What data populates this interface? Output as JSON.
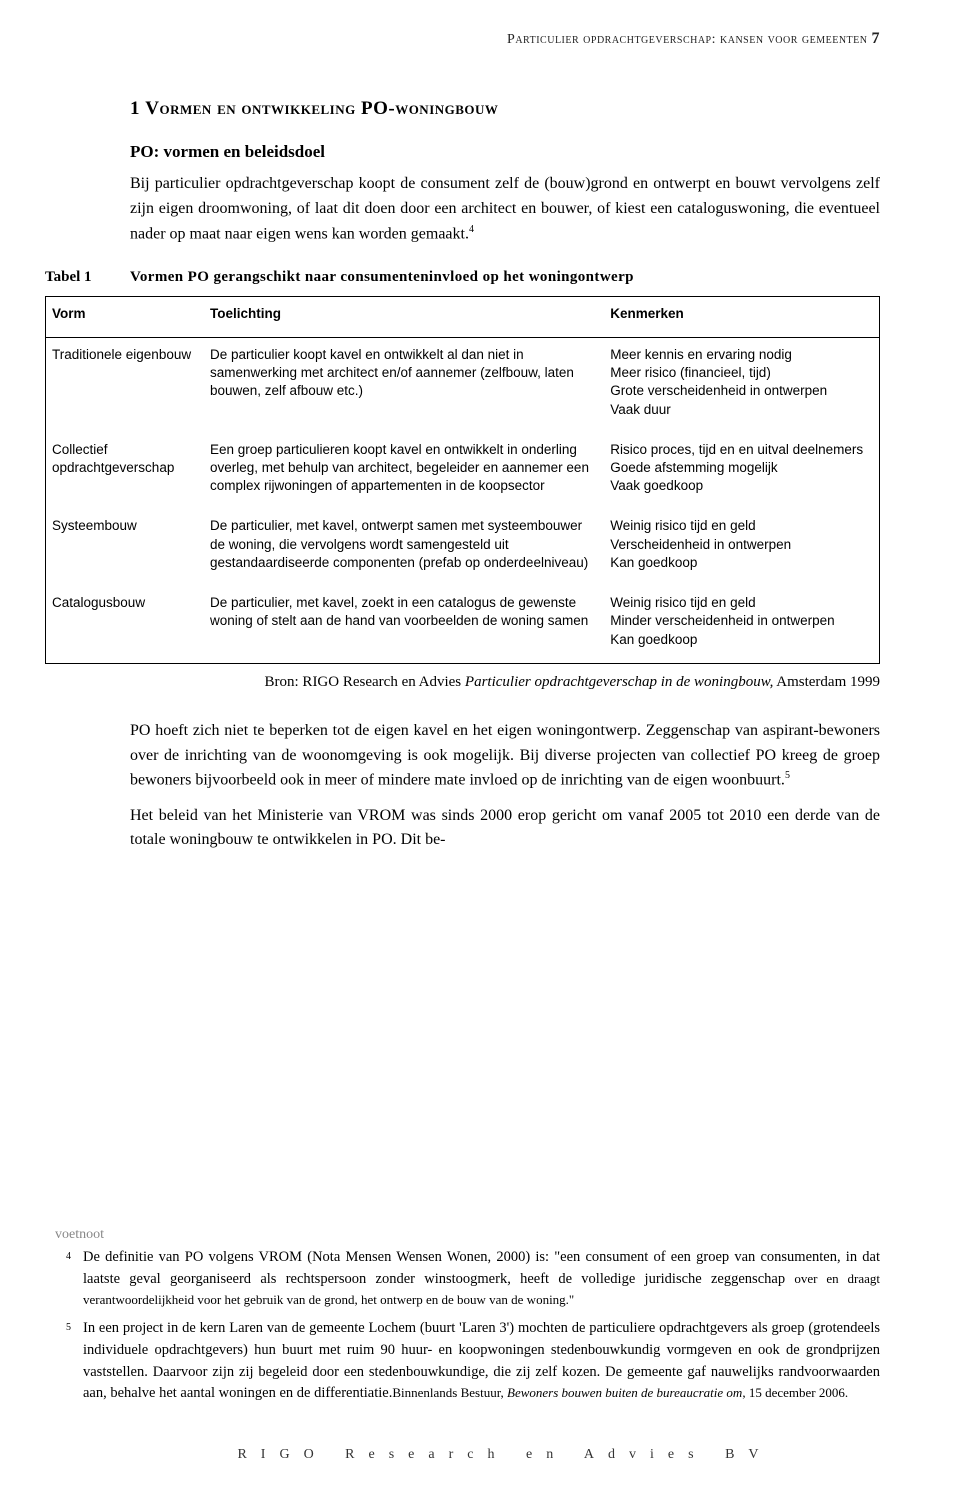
{
  "header": {
    "running_title": "Particulier opdrachtgeverschap: kansen voor gemeenten",
    "page_number": "7"
  },
  "section": {
    "number": "1",
    "title_pre": "V",
    "title_rest": "ormen en ontwikkeling",
    "title_suffix": "PO-woningbouw",
    "subheading": "PO: vormen en beleidsdoel",
    "para1a": "Bij particulier opdrachtgeverschap koopt de consument zelf de (bouw)grond en ontwerpt en bouwt vervolgens zelf zijn eigen droomwoning, of laat dit doen door een architect en bouwer, of kiest een cataloguswoning, die eventueel nader op maat naar eigen wens kan worden gemaakt.",
    "fnref1": "4"
  },
  "table": {
    "label": "Tabel 1",
    "title": "Vormen PO gerangschikt naar consumenteninvloed op het woningontwerp",
    "columns": [
      "Vorm",
      "Toelichting",
      "Kenmerken"
    ],
    "rows": [
      {
        "vorm": "Traditionele eigenbouw",
        "toelichting": "De particulier koopt kavel en ontwikkelt al dan niet in samenwerking met architect en/of aannemer (zelfbouw, laten bouwen, zelf afbouw etc.)",
        "kenmerken": [
          "Meer kennis en ervaring nodig",
          "Meer risico (financieel, tijd)",
          "Grote verscheidenheid in ontwerpen",
          "Vaak duur"
        ]
      },
      {
        "vorm": "Collectief opdrachtgeverschap",
        "toelichting": "Een groep particulieren koopt kavel en ontwikkelt in onderling overleg, met behulp van architect, begeleider en aannemer een complex rijwoningen of appartementen in de koopsector",
        "kenmerken": [
          "Risico proces, tijd en en uitval deelnemers",
          "Goede afstemming mogelijk",
          "Vaak goedkoop"
        ]
      },
      {
        "vorm": "Systeembouw",
        "toelichting": "De particulier, met kavel, ontwerpt samen met systeembouwer de woning, die vervolgens wordt samengesteld uit gestandaardiseerde componenten (prefab op onderdeelniveau)",
        "kenmerken": [
          "Weinig risico tijd en geld",
          "Verscheidenheid in ontwerpen",
          "Kan goedkoop"
        ]
      },
      {
        "vorm": "Catalogusbouw",
        "toelichting": "De particulier, met kavel, zoekt in een catalogus de gewenste woning of stelt aan de hand van voorbeelden de woning samen",
        "kenmerken": [
          "Weinig risico tijd en geld",
          "Minder verscheidenheid in ontwerpen",
          "Kan goedkoop"
        ]
      }
    ],
    "source_prefix": "Bron: RIGO Research en Advies ",
    "source_italic": "Particulier opdrachtgeverschap in de woningbouw,",
    "source_suffix": " Amsterdam 1999"
  },
  "after": {
    "para2": "PO hoeft zich niet te beperken tot de eigen kavel en het eigen woningontwerp. Zeggenschap van aspirant-bewoners over de inrichting van de woonomgeving is ook mogelijk. Bij diverse projecten van collectief PO kreeg de groep bewoners bijvoorbeeld ook in meer of mindere mate invloed op de inrichting van de eigen woonbuurt.",
    "fnref2": "5",
    "para3": "Het beleid van het Ministerie van VROM was sinds 2000 erop gericht om vanaf 2005 tot 2010 een derde van de totale woningbouw te ontwikkelen in PO. Dit be-"
  },
  "footnotes": {
    "label": "voetnoot",
    "items": [
      {
        "num": "4",
        "text_a": "De definitie van PO volgens VROM (Nota Mensen Wensen Wonen, 2000) is: \"een consument of een groep van consumenten, in dat laatste geval georganiseerd als rechtspersoon zonder winstoogmerk, heeft de volledige juridische zeggenschap ",
        "text_small": "over en draagt verantwoordelijkheid voor het gebruik van de grond, het ontwerp en de bouw van de woning.\""
      },
      {
        "num": "5",
        "text_a": "In een project in de kern Laren van de gemeente Lochem (buurt 'Laren 3') mochten de particuliere opdrachtgevers als groep (grotendeels individuele opdrachtgevers) hun buurt met ruim 90 huur- en koopwoningen stedenbouwkundig vormgeven en ook de grondprijzen vaststellen. Daarvoor zijn zij begeleid door een stedenbouwkundige, die zij zelf kozen. De gemeente gaf nauwelijks randvoorwaarden aan, behalve het aantal woningen en de differentiatie.",
        "text_small": "Binnenlands Bestuur, ",
        "text_italic": "Bewoners bouwen buiten de bureaucratie om",
        "text_tail": ", 15 december 2006."
      }
    ]
  },
  "footer": {
    "text": "RIGO Research en Advies BV"
  }
}
